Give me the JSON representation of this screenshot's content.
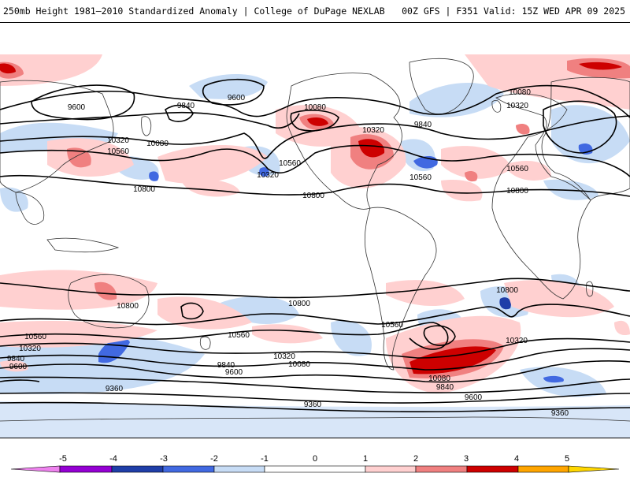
{
  "header": {
    "left_title": "250mb Height 1981–2010 Standardized Anomaly | College of DuPage NEXLAB",
    "right_title": "00Z GFS | F351 Valid: 15Z WED APR 09 2025"
  },
  "colorbar": {
    "ticks": [
      "-5",
      "-4",
      "-3",
      "-2",
      "-1",
      "0",
      "1",
      "2",
      "3",
      "4",
      "5"
    ],
    "colors": [
      "#ee82ee",
      "#9400d3",
      "#1f3ea8",
      "#4169e1",
      "#c7dcf5",
      "#ffffff",
      "#ffd0d0",
      "#f08080",
      "#cd0000",
      "#ffa500",
      "#ffd700"
    ]
  },
  "map": {
    "contour_labels": [
      {
        "id": "c1",
        "text": "9600"
      },
      {
        "id": "c2",
        "text": "9840"
      },
      {
        "id": "c3",
        "text": "9600"
      },
      {
        "id": "c4",
        "text": "10080"
      },
      {
        "id": "c5",
        "text": "10320"
      },
      {
        "id": "c6",
        "text": "9840"
      },
      {
        "id": "c7",
        "text": "10080"
      },
      {
        "id": "c8",
        "text": "10320"
      },
      {
        "id": "c9",
        "text": "10320"
      },
      {
        "id": "c10",
        "text": "10560"
      },
      {
        "id": "c11",
        "text": "10080"
      },
      {
        "id": "c12",
        "text": "10560"
      },
      {
        "id": "c13",
        "text": "10320"
      },
      {
        "id": "c14",
        "text": "10800"
      },
      {
        "id": "c15",
        "text": "10560"
      },
      {
        "id": "c16",
        "text": "10800"
      },
      {
        "id": "c17",
        "text": "10560"
      },
      {
        "id": "c18",
        "text": "10800"
      },
      {
        "id": "c19",
        "text": "10800"
      },
      {
        "id": "c20",
        "text": "10800"
      },
      {
        "id": "c21",
        "text": "10800"
      },
      {
        "id": "c22",
        "text": "10560"
      },
      {
        "id": "c23",
        "text": "10560"
      },
      {
        "id": "c24",
        "text": "10320"
      },
      {
        "id": "c25",
        "text": "10560"
      },
      {
        "id": "c26",
        "text": "10320"
      },
      {
        "id": "c27",
        "text": "9840"
      },
      {
        "id": "c28",
        "text": "10320"
      },
      {
        "id": "c29",
        "text": "9600"
      },
      {
        "id": "c30",
        "text": "9840"
      },
      {
        "id": "c31",
        "text": "9600"
      },
      {
        "id": "c32",
        "text": "10080"
      },
      {
        "id": "c33",
        "text": "10080"
      },
      {
        "id": "c34",
        "text": "9840"
      },
      {
        "id": "c35",
        "text": "9600"
      },
      {
        "id": "c36",
        "text": "9360"
      },
      {
        "id": "c37",
        "text": "9360"
      },
      {
        "id": "c38",
        "text": "9360"
      }
    ]
  }
}
